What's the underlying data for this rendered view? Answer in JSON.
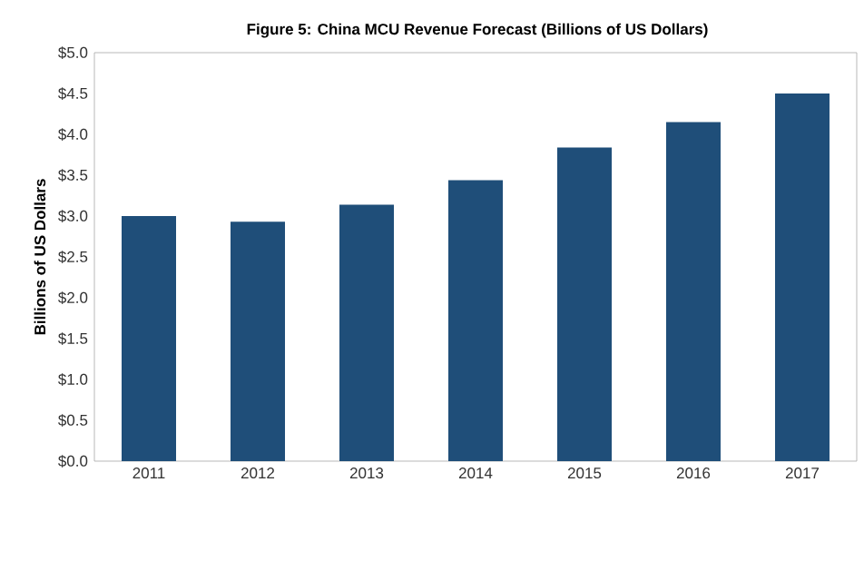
{
  "chart_data": {
    "type": "bar",
    "title": "Figure 5: China MCU Revenue Forecast (Billions of US Dollars)",
    "ylabel": "Billions of US Dollars",
    "categories": [
      "2011",
      "2012",
      "2013",
      "2014",
      "2015",
      "2016",
      "2017"
    ],
    "values": [
      3.0,
      2.93,
      3.14,
      3.44,
      3.84,
      4.15,
      4.5
    ],
    "color": "#1f4e79",
    "ylim": [
      0,
      5
    ],
    "yticks": [
      {
        "value": 0,
        "label": "$0.0"
      },
      {
        "value": 0.5,
        "label": "$0.5"
      },
      {
        "value": 1,
        "label": "$1.0"
      },
      {
        "value": 1.5,
        "label": "$1.5"
      },
      {
        "value": 2,
        "label": "$2.0"
      },
      {
        "value": 2.5,
        "label": "$2.5"
      },
      {
        "value": 3,
        "label": "$3.0"
      },
      {
        "value": 3.5,
        "label": "$3.5"
      },
      {
        "value": 4,
        "label": "$4.0"
      },
      {
        "value": 4.5,
        "label": "$4.5"
      },
      {
        "value": 5,
        "label": "$5.0"
      }
    ],
    "grid": false
  }
}
